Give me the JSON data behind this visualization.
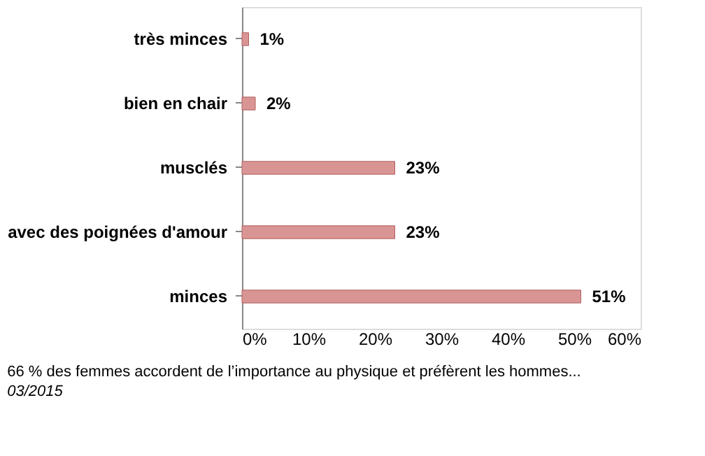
{
  "chart_data": {
    "type": "bar",
    "orientation": "horizontal",
    "title": "66 % des femmes accordent de l’importance au physique et préfèrent les hommes...",
    "categories": [
      "très minces",
      "bien en chair",
      "musclés",
      "avec des poignées d'amour",
      "minces"
    ],
    "values": [
      1,
      2,
      23,
      23,
      51
    ],
    "color": "#d99594",
    "value_labels": [
      "1%",
      "2%",
      "23%",
      "23%",
      "51%"
    ],
    "xlim": [
      0,
      60
    ],
    "xticks": [
      {
        "value": 0,
        "label": "0%"
      },
      {
        "value": 10,
        "label": "10%"
      },
      {
        "value": 20,
        "label": "20%"
      },
      {
        "value": 30,
        "label": "30%"
      },
      {
        "value": 40,
        "label": "40%"
      },
      {
        "value": 50,
        "label": "50%"
      },
      {
        "value": 60,
        "label": "60%"
      }
    ],
    "annotations": [
      "03/2015"
    ],
    "grid": false
  }
}
